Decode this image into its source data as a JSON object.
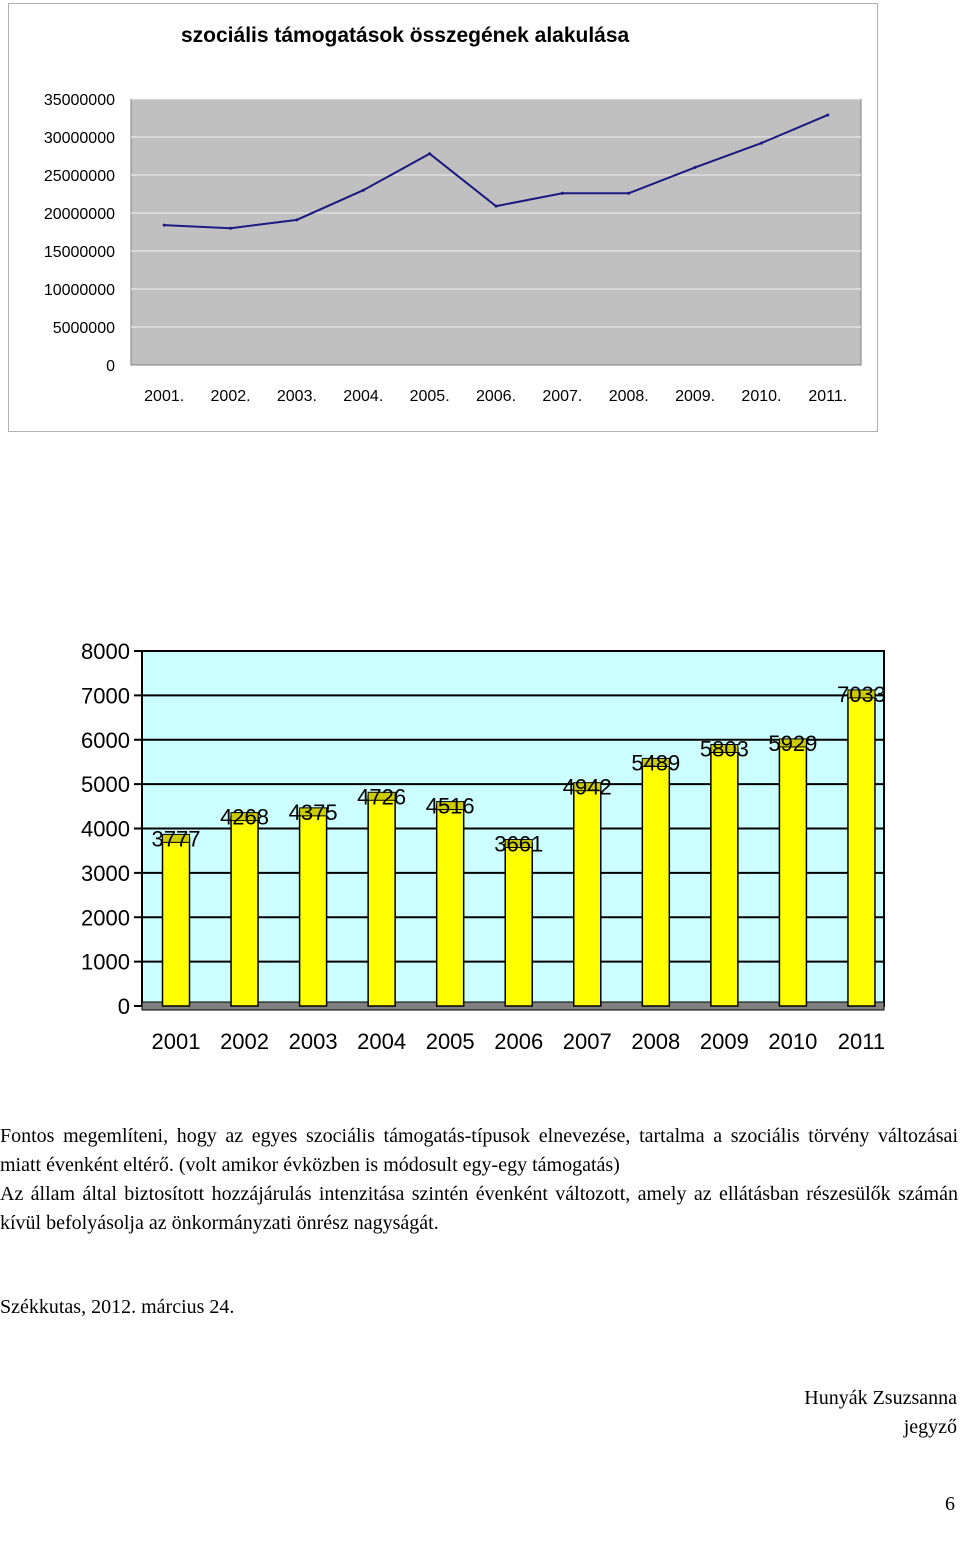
{
  "chart_data": [
    {
      "type": "line",
      "title": "szociális támogatások összegének alakulása",
      "categories": [
        "2001.",
        "2002.",
        "2003.",
        "2004.",
        "2005.",
        "2006.",
        "2007.",
        "2008.",
        "2009.",
        "2010.",
        "2011."
      ],
      "series": [
        {
          "values": [
            18400000,
            18000000,
            19100000,
            23000000,
            27800000,
            20900000,
            22600000,
            22600000,
            26000000,
            29200000,
            32900000
          ]
        }
      ],
      "yticks": [
        "0",
        "5000000",
        "10000000",
        "15000000",
        "20000000",
        "25000000",
        "30000000",
        "35000000"
      ],
      "ylim": [
        0,
        35000000
      ],
      "grid": true,
      "colors": {
        "line": "#1a1a80",
        "plot_bg": "#c0c0c0",
        "grid": "#f0f0f0"
      }
    },
    {
      "type": "bar",
      "categories": [
        "2001",
        "2002",
        "2003",
        "2004",
        "2005",
        "2006",
        "2007",
        "2008",
        "2009",
        "2010",
        "2011"
      ],
      "values": [
        3777,
        4268,
        4375,
        4726,
        4516,
        3661,
        4942,
        5489,
        5803,
        5929,
        7033
      ],
      "yticks": [
        "0",
        "1000",
        "2000",
        "3000",
        "4000",
        "5000",
        "6000",
        "7000",
        "8000"
      ],
      "ylim": [
        0,
        8000
      ],
      "grid": true,
      "colors": {
        "bar": "#ffff00",
        "bar_top": "#cccc00",
        "plot_bg": "#ccffff",
        "floor": "#808080"
      }
    }
  ],
  "text": {
    "paragraph1": "Fontos megemlíteni, hogy az egyes szociális támogatás-típusok elnevezése, tartalma a szociális törvény változásai miatt évenként eltérő. (volt amikor évközben is módosult egy-egy támogatás)",
    "paragraph2": "Az állam által biztosított hozzájárulás intenzitása szintén évenként változott, amely az ellátásban részesülők számán kívül befolyásolja az önkormányzati önrész nagyságát.",
    "place_date": "Székkutas, 2012. március 24.",
    "signer_name": "Hunyák Zsuzsanna",
    "signer_title": "jegyző",
    "page_number": "6"
  }
}
